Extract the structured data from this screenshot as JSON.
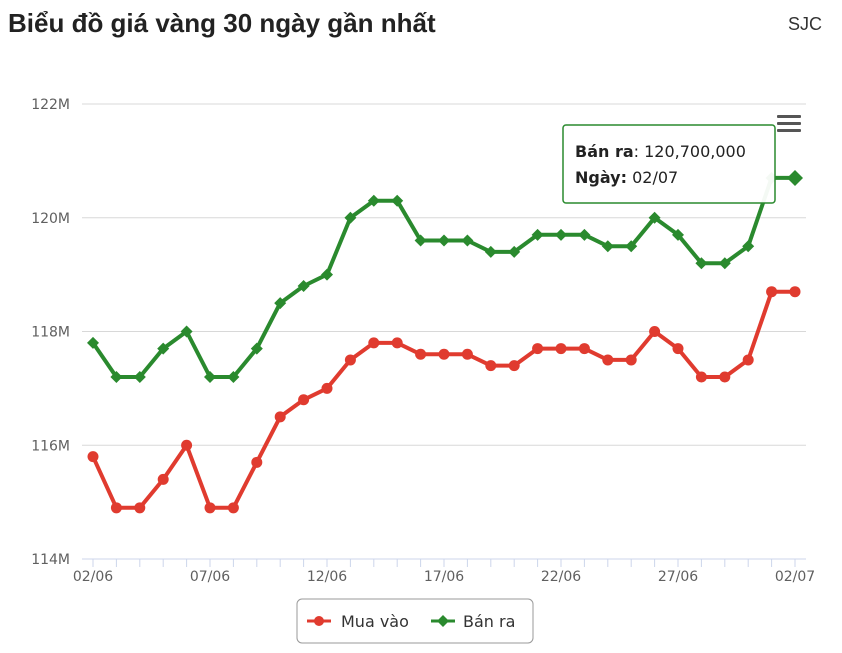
{
  "header": {
    "title": "Biểu đồ giá vàng 30 ngày gần nhất",
    "source": "SJC"
  },
  "colors": {
    "buy": "#e03b2f",
    "sell": "#2a8a2e",
    "grid": "#d8d8d8",
    "axis": "#ccd6eb"
  },
  "icons": {
    "menu": "hamburger-menu-icon"
  },
  "tooltip": {
    "series_label": "Bán ra",
    "value_text": "120,700,000",
    "date_label": "Ngày",
    "date_text": "02/07",
    "point_index": 30
  },
  "chart_data": {
    "type": "line",
    "x": [
      "02/06",
      "03/06",
      "04/06",
      "05/06",
      "06/06",
      "07/06",
      "08/06",
      "09/06",
      "10/06",
      "11/06",
      "12/06",
      "13/06",
      "14/06",
      "15/06",
      "16/06",
      "17/06",
      "18/06",
      "19/06",
      "20/06",
      "21/06",
      "22/06",
      "23/06",
      "24/06",
      "25/06",
      "26/06",
      "27/06",
      "28/06",
      "29/06",
      "30/06",
      "01/07",
      "02/07"
    ],
    "x_tick_labels": [
      "02/06",
      "07/06",
      "12/06",
      "17/06",
      "22/06",
      "27/06",
      "02/07"
    ],
    "x_tick_indices": [
      0,
      5,
      10,
      15,
      20,
      25,
      30
    ],
    "y_tick_labels": [
      "114M",
      "116M",
      "118M",
      "120M",
      "122M"
    ],
    "y_tick_values": [
      114,
      116,
      118,
      120,
      122
    ],
    "ylim": [
      114,
      122
    ],
    "y_unit": "million VND",
    "series": [
      {
        "name": "Mua vào",
        "color": "#e03b2f",
        "marker": "circle",
        "values": [
          115.8,
          114.9,
          114.9,
          115.4,
          116.0,
          114.9,
          114.9,
          115.7,
          116.5,
          116.8,
          117.0,
          117.5,
          117.8,
          117.8,
          117.6,
          117.6,
          117.6,
          117.4,
          117.4,
          117.7,
          117.7,
          117.7,
          117.5,
          117.5,
          118.0,
          117.7,
          117.2,
          117.2,
          117.5,
          118.7,
          118.7
        ]
      },
      {
        "name": "Bán ra",
        "color": "#2a8a2e",
        "marker": "diamond",
        "values": [
          117.8,
          117.2,
          117.2,
          117.7,
          118.0,
          117.2,
          117.2,
          117.7,
          118.5,
          118.8,
          119.0,
          120.0,
          120.3,
          120.3,
          119.6,
          119.6,
          119.6,
          119.4,
          119.4,
          119.7,
          119.7,
          119.7,
          119.5,
          119.5,
          120.0,
          119.7,
          119.2,
          119.2,
          119.5,
          120.7,
          120.7
        ]
      }
    ],
    "legend": [
      "Mua vào",
      "Bán ra"
    ],
    "legend_position": "bottom-center",
    "grid": true
  }
}
